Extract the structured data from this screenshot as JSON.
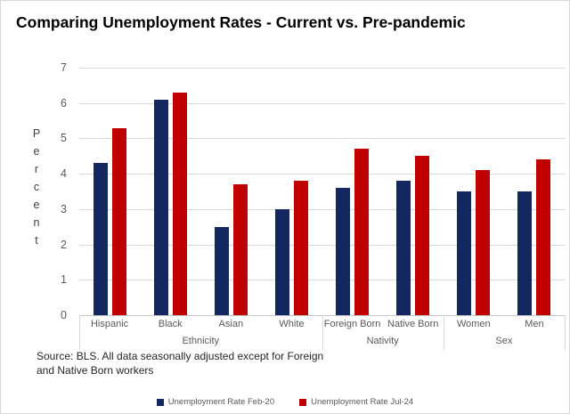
{
  "title": "Comparing Unemployment Rates - Current vs. Pre-pandemic",
  "source_note": "Source: BLS. All data seasonally adjusted except for Foreign\nand Native Born workers",
  "colors": {
    "series_feb20": "#12285e",
    "series_jul24": "#c00000",
    "gridline": "#d9d9d9",
    "axis_text": "#595959",
    "title_text": "#000000"
  },
  "chart_data": {
    "type": "bar",
    "title": "Comparing Unemployment Rates - Current vs. Pre-pandemic",
    "xlabel": "",
    "ylabel": "Percent",
    "ylim": [
      0,
      7
    ],
    "ytick_step": 1,
    "grid": "horizontal",
    "legend_position": "bottom-center",
    "categories": [
      "Hispanic",
      "Black",
      "Asian",
      "White",
      "Foreign Born",
      "Native Born",
      "Women",
      "Men"
    ],
    "category_groups": [
      {
        "label": "Ethnicity",
        "span": 4
      },
      {
        "label": "Nativity",
        "span": 2
      },
      {
        "label": "Sex",
        "span": 2
      }
    ],
    "series": [
      {
        "name": "Unemployment Rate Feb-20",
        "color": "#12285e",
        "values": [
          4.3,
          6.1,
          2.5,
          3.0,
          3.6,
          3.8,
          3.5,
          3.5
        ]
      },
      {
        "name": "Unemployment Rate Jul-24",
        "color": "#c00000",
        "values": [
          5.3,
          6.3,
          3.7,
          3.8,
          4.7,
          4.5,
          4.1,
          4.4
        ]
      }
    ]
  }
}
